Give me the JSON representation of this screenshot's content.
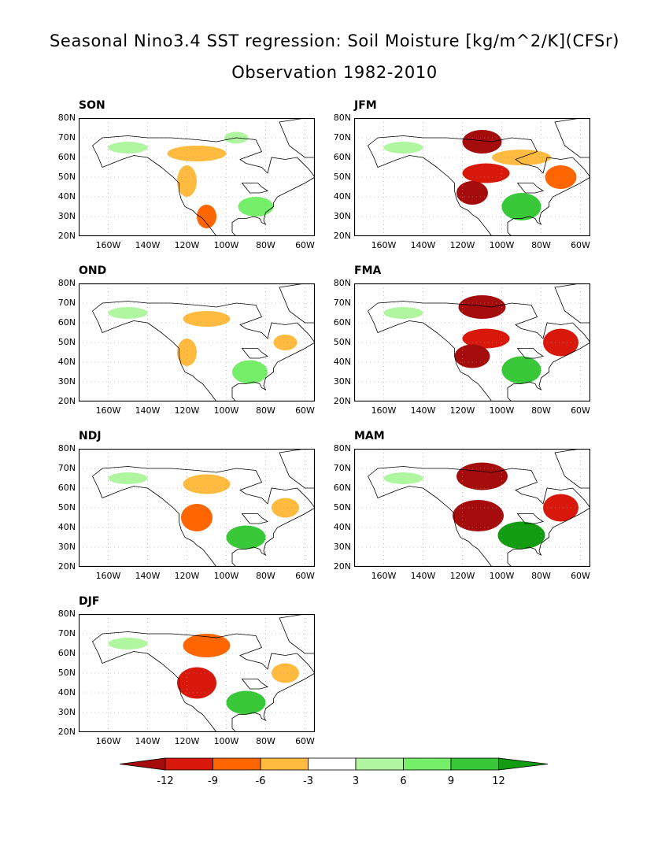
{
  "title": "Seasonal Nino3.4 SST regression: Soil Moisture [kg/m^2/K](CFSr)",
  "subtitle": "Observation 1982-2010",
  "axes": {
    "lat_labels": [
      "80N",
      "70N",
      "60N",
      "50N",
      "40N",
      "30N",
      "20N"
    ],
    "lon_labels": [
      "160W",
      "140W",
      "120W",
      "100W",
      "80W",
      "60W"
    ]
  },
  "colorbar": {
    "levels": [
      "-12",
      "-9",
      "-6",
      "-3",
      "3",
      "6",
      "9",
      "12"
    ],
    "colors": [
      "#a50d0d",
      "#d7180a",
      "#ff6500",
      "#ffbb40",
      "#ffffff",
      "#b0f5a0",
      "#75ee6a",
      "#38c838",
      "#129c12"
    ]
  },
  "chart_data": {
    "type": "heatmap",
    "lat_range": [
      20,
      80
    ],
    "lon_range": [
      -175,
      -55
    ],
    "panels": [
      {
        "season": "SON",
        "blobs": [
          {
            "lon": -150,
            "lat": 65,
            "rx": 10,
            "ry": 3,
            "level": 1
          },
          {
            "lon": -115,
            "lat": 62,
            "rx": 15,
            "ry": 4,
            "level": -1
          },
          {
            "lon": -120,
            "lat": 48,
            "rx": 5,
            "ry": 8,
            "level": -1
          },
          {
            "lon": -110,
            "lat": 30,
            "rx": 5,
            "ry": 6,
            "level": -2
          },
          {
            "lon": -85,
            "lat": 35,
            "rx": 9,
            "ry": 5,
            "level": 2
          },
          {
            "lon": -95,
            "lat": 70,
            "rx": 6,
            "ry": 3,
            "level": 1
          }
        ]
      },
      {
        "season": "JFM",
        "blobs": [
          {
            "lon": -110,
            "lat": 68,
            "rx": 10,
            "ry": 6,
            "level": -4
          },
          {
            "lon": -108,
            "lat": 52,
            "rx": 12,
            "ry": 5,
            "level": -3
          },
          {
            "lon": -115,
            "lat": 42,
            "rx": 8,
            "ry": 6,
            "level": -4
          },
          {
            "lon": -70,
            "lat": 50,
            "rx": 8,
            "ry": 6,
            "level": -2
          },
          {
            "lon": -90,
            "lat": 60,
            "rx": 15,
            "ry": 4,
            "level": -1
          },
          {
            "lon": -90,
            "lat": 35,
            "rx": 10,
            "ry": 7,
            "level": 3
          },
          {
            "lon": -150,
            "lat": 65,
            "rx": 10,
            "ry": 3,
            "level": 1
          }
        ]
      },
      {
        "season": "OND",
        "blobs": [
          {
            "lon": -150,
            "lat": 65,
            "rx": 10,
            "ry": 3,
            "level": 1
          },
          {
            "lon": -110,
            "lat": 62,
            "rx": 12,
            "ry": 4,
            "level": -1
          },
          {
            "lon": -120,
            "lat": 45,
            "rx": 5,
            "ry": 7,
            "level": -1
          },
          {
            "lon": -88,
            "lat": 35,
            "rx": 9,
            "ry": 6,
            "level": 2
          },
          {
            "lon": -70,
            "lat": 50,
            "rx": 6,
            "ry": 4,
            "level": -1
          }
        ]
      },
      {
        "season": "FMA",
        "blobs": [
          {
            "lon": -110,
            "lat": 68,
            "rx": 12,
            "ry": 6,
            "level": -4
          },
          {
            "lon": -108,
            "lat": 52,
            "rx": 12,
            "ry": 5,
            "level": -3
          },
          {
            "lon": -115,
            "lat": 43,
            "rx": 9,
            "ry": 6,
            "level": -4
          },
          {
            "lon": -70,
            "lat": 50,
            "rx": 9,
            "ry": 7,
            "level": -3
          },
          {
            "lon": -90,
            "lat": 36,
            "rx": 10,
            "ry": 7,
            "level": 3
          },
          {
            "lon": -150,
            "lat": 65,
            "rx": 10,
            "ry": 3,
            "level": 1
          }
        ]
      },
      {
        "season": "NDJ",
        "blobs": [
          {
            "lon": -150,
            "lat": 65,
            "rx": 10,
            "ry": 3,
            "level": 1
          },
          {
            "lon": -110,
            "lat": 62,
            "rx": 12,
            "ry": 5,
            "level": -1
          },
          {
            "lon": -115,
            "lat": 45,
            "rx": 8,
            "ry": 7,
            "level": -2
          },
          {
            "lon": -90,
            "lat": 35,
            "rx": 10,
            "ry": 6,
            "level": 3
          },
          {
            "lon": -70,
            "lat": 50,
            "rx": 7,
            "ry": 5,
            "level": -1
          }
        ]
      },
      {
        "season": "MAM",
        "blobs": [
          {
            "lon": -110,
            "lat": 66,
            "rx": 13,
            "ry": 7,
            "level": -4
          },
          {
            "lon": -112,
            "lat": 46,
            "rx": 13,
            "ry": 8,
            "level": -4
          },
          {
            "lon": -70,
            "lat": 50,
            "rx": 9,
            "ry": 7,
            "level": -3
          },
          {
            "lon": -90,
            "lat": 36,
            "rx": 12,
            "ry": 7,
            "level": 4
          },
          {
            "lon": -150,
            "lat": 65,
            "rx": 10,
            "ry": 3,
            "level": 1
          }
        ]
      },
      {
        "season": "DJF",
        "blobs": [
          {
            "lon": -110,
            "lat": 64,
            "rx": 12,
            "ry": 6,
            "level": -2
          },
          {
            "lon": -115,
            "lat": 45,
            "rx": 10,
            "ry": 8,
            "level": -3
          },
          {
            "lon": -90,
            "lat": 35,
            "rx": 10,
            "ry": 6,
            "level": 3
          },
          {
            "lon": -70,
            "lat": 50,
            "rx": 7,
            "ry": 5,
            "level": -1
          },
          {
            "lon": -150,
            "lat": 65,
            "rx": 10,
            "ry": 3,
            "level": 1
          }
        ]
      }
    ]
  }
}
